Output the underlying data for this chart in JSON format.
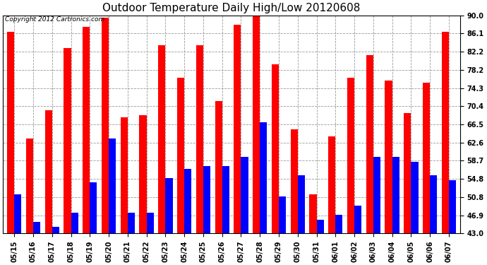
{
  "title": "Outdoor Temperature Daily High/Low 20120608",
  "copyright": "Copyright 2012 Cartronics.com",
  "dates": [
    "05/15",
    "05/16",
    "05/17",
    "05/18",
    "05/19",
    "05/20",
    "05/21",
    "05/22",
    "05/23",
    "05/24",
    "05/25",
    "05/26",
    "05/27",
    "05/28",
    "05/29",
    "05/30",
    "05/31",
    "06/01",
    "06/02",
    "06/03",
    "06/04",
    "06/05",
    "06/06",
    "06/07"
  ],
  "highs": [
    86.5,
    63.5,
    69.5,
    83.0,
    87.5,
    89.5,
    68.0,
    68.5,
    83.5,
    76.5,
    83.5,
    71.5,
    88.0,
    90.0,
    79.5,
    65.5,
    51.5,
    64.0,
    76.5,
    81.5,
    76.0,
    69.0,
    75.5,
    86.5
  ],
  "lows": [
    51.5,
    45.5,
    44.5,
    47.5,
    54.0,
    63.5,
    47.5,
    47.5,
    55.0,
    57.0,
    57.5,
    57.5,
    59.5,
    67.0,
    51.0,
    55.5,
    46.0,
    47.0,
    49.0,
    59.5,
    59.5,
    58.5,
    55.5,
    54.5
  ],
  "high_color": "#ff0000",
  "low_color": "#0000ff",
  "bg_color": "#ffffff",
  "grid_color": "#999999",
  "ymin": 43.0,
  "ymax": 90.0,
  "yticks": [
    43.0,
    46.9,
    50.8,
    54.8,
    58.7,
    62.6,
    66.5,
    70.4,
    74.3,
    78.2,
    82.2,
    86.1,
    90.0
  ],
  "title_fontsize": 11,
  "copyright_fontsize": 6.5,
  "tick_fontsize": 7,
  "bar_width": 0.38
}
